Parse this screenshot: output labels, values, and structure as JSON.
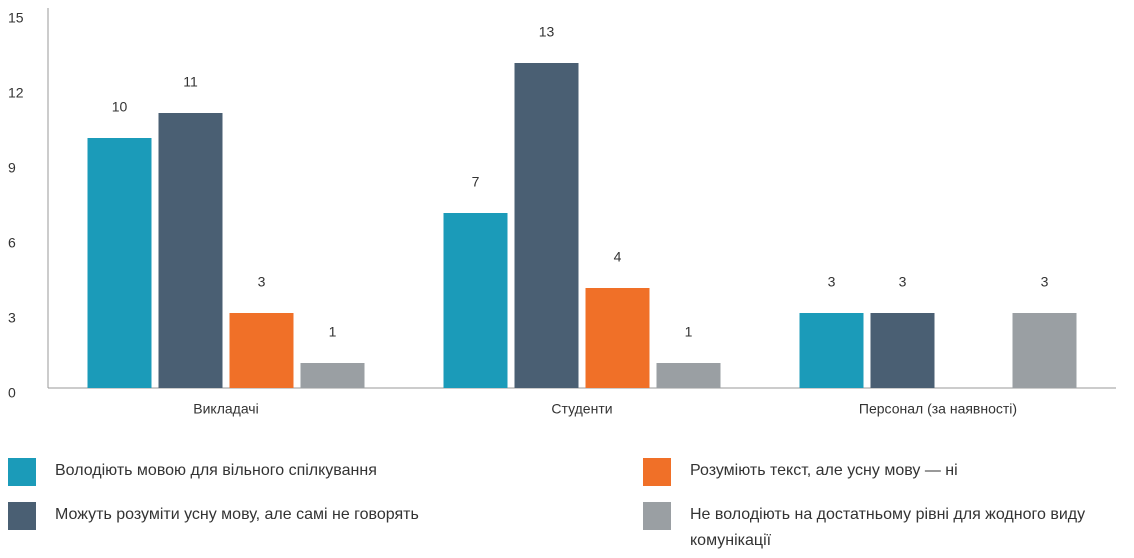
{
  "chart_data": {
    "type": "bar",
    "categories": [
      "Викладачі",
      "Студенти",
      "Персонал (за наявності)"
    ],
    "series": [
      {
        "name": "Володіють мовою для вільного спілкування",
        "color": "#1b9bb9",
        "values": [
          10,
          7,
          3
        ]
      },
      {
        "name": "Можуть розуміти усну мову, але самі не говорять",
        "color": "#4a5f73",
        "values": [
          11,
          13,
          3
        ]
      },
      {
        "name": "Розуміють текст, але усну мову — ні",
        "color": "#f07028",
        "values": [
          3,
          4,
          null
        ]
      },
      {
        "name": "Не володіють на достатньому рівні для жодного виду комунікації",
        "color": "#9a9fa3",
        "values": [
          1,
          1,
          3
        ]
      }
    ],
    "ylim": [
      0,
      15
    ],
    "yticks": [
      0,
      3,
      6,
      9,
      12,
      15
    ],
    "grid": false
  }
}
